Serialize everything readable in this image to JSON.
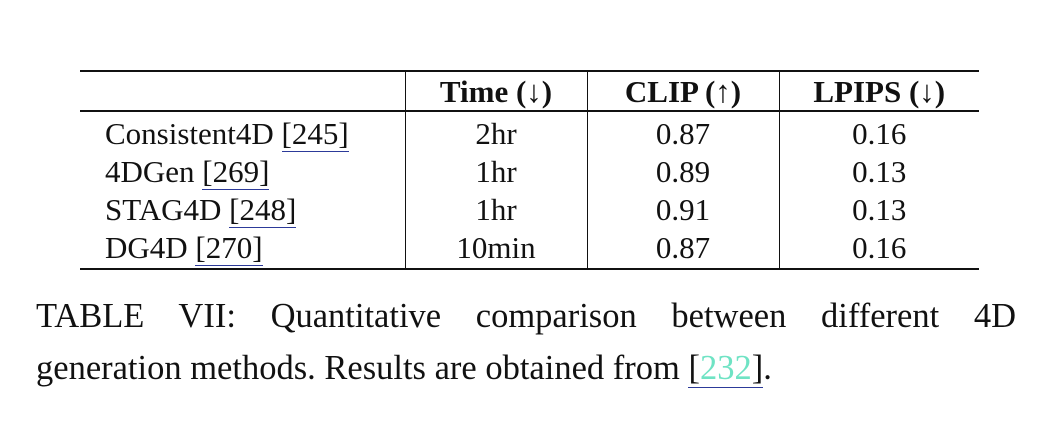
{
  "table": {
    "headers": [
      "",
      "Time (↓)",
      "CLIP (↑)",
      "LPIPS (↓)"
    ],
    "rows": [
      {
        "method": "Consistent4D",
        "ref": "245",
        "time": "2hr",
        "clip": "0.87",
        "lpips": "0.16"
      },
      {
        "method": "4DGen",
        "ref": "269",
        "time": "1hr",
        "clip": "0.89",
        "lpips": "0.13"
      },
      {
        "method": "STAG4D",
        "ref": "248",
        "time": "1hr",
        "clip": "0.91",
        "lpips": "0.13"
      },
      {
        "method": "DG4D",
        "ref": "270",
        "time": "10min",
        "clip": "0.87",
        "lpips": "0.16"
      }
    ]
  },
  "caption": {
    "line1": "TABLE VII: Quantitative comparison between different 4D",
    "line2_prefix": "generation methods. Results are obtained from ",
    "ref": "232",
    "line2_suffix": "."
  },
  "colors": {
    "citation_link": "#6fe3c4",
    "citation_underline": "#2c3a99"
  }
}
